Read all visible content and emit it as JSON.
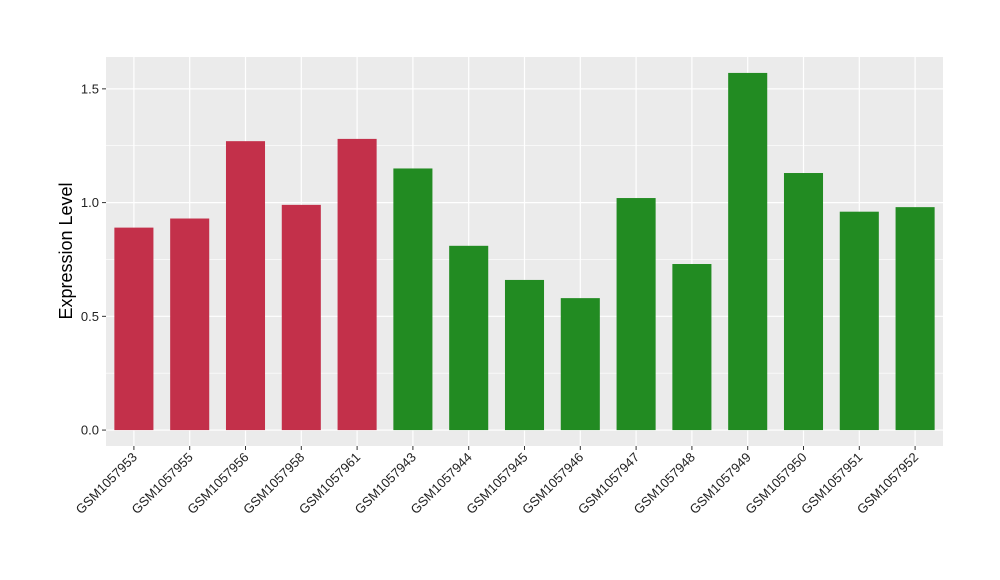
{
  "chart_data": {
    "type": "bar",
    "title": "",
    "xlabel": "",
    "ylabel": "Expression Level",
    "ylim": [
      -0.07,
      1.64
    ],
    "yticks": [
      0.0,
      0.5,
      1.0,
      1.5
    ],
    "ytick_labels": [
      "0.0",
      "0.5",
      "1.0",
      "1.5"
    ],
    "grid": true,
    "panel_background": "#ebebeb",
    "categories": [
      "GSM1057953",
      "GSM1057955",
      "GSM1057956",
      "GSM1057958",
      "GSM1057961",
      "GSM1057943",
      "GSM1057944",
      "GSM1057945",
      "GSM1057946",
      "GSM1057947",
      "GSM1057948",
      "GSM1057949",
      "GSM1057950",
      "GSM1057951",
      "GSM1057952"
    ],
    "values": [
      0.89,
      0.93,
      1.27,
      0.99,
      1.28,
      1.15,
      0.81,
      0.66,
      0.58,
      1.02,
      0.73,
      1.57,
      1.13,
      0.96,
      0.98
    ],
    "bar_colors": [
      "#c3304a",
      "#c3304a",
      "#c3304a",
      "#c3304a",
      "#c3304a",
      "#228b22",
      "#228b22",
      "#228b22",
      "#228b22",
      "#228b22",
      "#228b22",
      "#228b22",
      "#228b22",
      "#228b22",
      "#228b22"
    ]
  }
}
